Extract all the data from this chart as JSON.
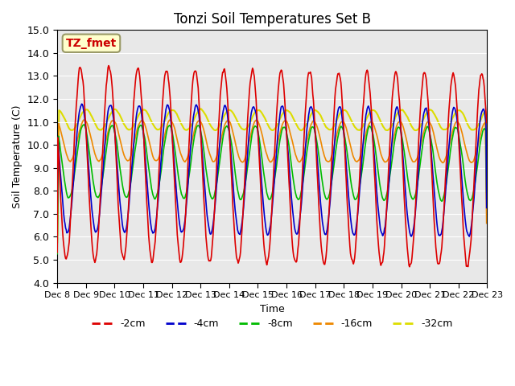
{
  "title": "Tonzi Soil Temperatures Set B",
  "xlabel": "Time",
  "ylabel": "Soil Temperature (C)",
  "ylim": [
    4.0,
    15.0
  ],
  "yticks": [
    4.0,
    5.0,
    6.0,
    7.0,
    8.0,
    9.0,
    10.0,
    11.0,
    12.0,
    13.0,
    14.0,
    15.0
  ],
  "xtick_labels": [
    "Dec 8",
    "Dec 9",
    "Dec 10",
    "Dec 11",
    "Dec 12",
    "Dec 13",
    "Dec 14",
    "Dec 15",
    "Dec 16",
    "Dec 17",
    "Dec 18",
    "Dec 19",
    "Dec 20",
    "Dec 21",
    "Dec 22",
    "Dec 23"
  ],
  "colors": {
    "-2cm": "#dd0000",
    "-4cm": "#0000cc",
    "-8cm": "#00bb00",
    "-16cm": "#ee8800",
    "-32cm": "#dddd00"
  },
  "label_box_text": "TZ_fmet",
  "label_box_facecolor": "#ffffcc",
  "label_box_edgecolor": "#999966",
  "background_color": "#e8e8e8",
  "n_days": 15,
  "n_per_day": 48,
  "means": [
    9.2,
    9.0,
    9.3,
    10.2,
    11.1
  ],
  "amps": [
    4.2,
    2.8,
    1.6,
    0.9,
    0.45
  ],
  "phases": [
    0.55,
    0.6,
    0.65,
    0.7,
    0.75
  ],
  "depths": [
    "-2cm",
    "-4cm",
    "-8cm",
    "-16cm",
    "-32cm"
  ],
  "smooths": [
    2,
    3,
    4,
    5,
    6
  ],
  "trend_factors": [
    1.0,
    0.7,
    0.5,
    0.3,
    0.1
  ],
  "noise_scales": [
    0.08,
    0.06,
    0.05,
    0.04,
    0.03
  ]
}
